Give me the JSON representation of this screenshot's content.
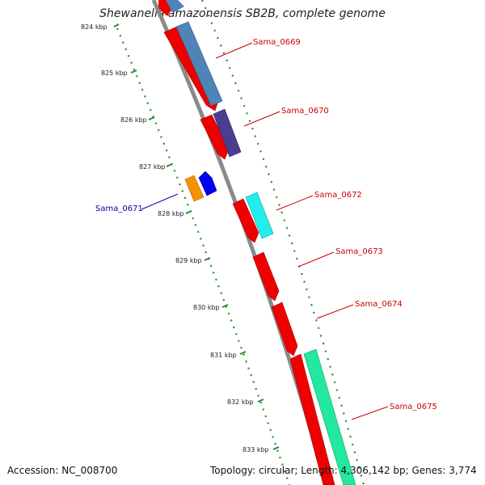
{
  "title": "Shewanella amazonensis SB2B, complete genome",
  "footer": {
    "accession": "Accession: NC_008700",
    "summary": "Topology: circular; Length: 4,306,142 bp; Genes: 3,774"
  },
  "ticks": [
    "824 kbp",
    "825 kbp",
    "826 kbp",
    "827 kbp",
    "828 kbp",
    "829 kbp",
    "830 kbp",
    "831 kbp",
    "832 kbp",
    "833 kbp"
  ],
  "gene_labels": [
    {
      "text": "Sama_0669",
      "color": "#cc0000"
    },
    {
      "text": "Sama_0670",
      "color": "#cc0000"
    },
    {
      "text": "Sama_0671",
      "color": "#0000aa"
    },
    {
      "text": "Sama_0672",
      "color": "#cc0000"
    },
    {
      "text": "Sama_0673",
      "color": "#cc0000"
    },
    {
      "text": "Sama_0674",
      "color": "#cc0000"
    },
    {
      "text": "Sama_0675",
      "color": "#cc0000"
    }
  ],
  "colors": {
    "backbone": "#8c8c8c",
    "cds": "#ee0000",
    "steelblue": "#4f84b8",
    "purple": "#4a3f8f",
    "cyan": "#22eeee",
    "orange": "#f39200",
    "blue": "#0000ee",
    "green": "#22e8a0",
    "tick": "#2a8a2a"
  }
}
